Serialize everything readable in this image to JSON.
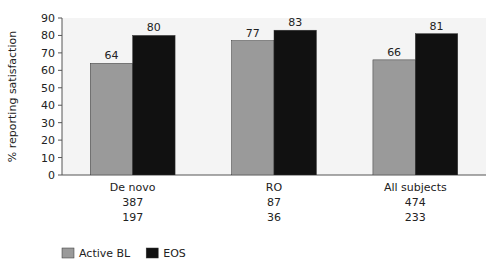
{
  "chart_data": {
    "type": "bar",
    "categories": [
      [
        "De novo",
        "387",
        "197"
      ],
      [
        "RO",
        "87",
        "36"
      ],
      [
        "All subjects",
        "474",
        "233"
      ]
    ],
    "series": [
      {
        "name": "Active BL",
        "color": "#9a9a9a",
        "values": [
          64,
          77,
          66
        ]
      },
      {
        "name": "EOS",
        "color": "#111111",
        "values": [
          80,
          83,
          81
        ]
      }
    ],
    "y_label": "% reporting satisfaction",
    "ylim": [
      0,
      90
    ],
    "yticks": [
      0,
      10,
      20,
      30,
      40,
      50,
      60,
      70,
      80,
      90
    ],
    "data_labels": true,
    "grid": false,
    "legend": "lower left"
  }
}
